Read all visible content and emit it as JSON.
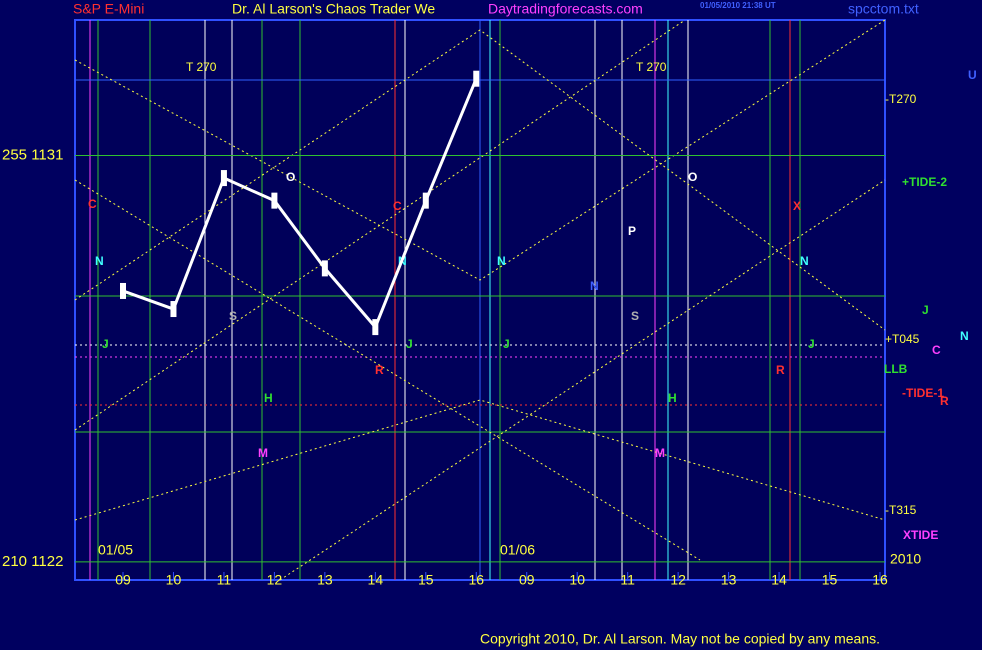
{
  "chart_data": {
    "type": "line",
    "title": "S&P E-Mini",
    "subtitle": "Dr. Al Larson's Chaos Trader We",
    "site": "Daytradingforecasts.com",
    "file": "spcctom.txt",
    "timestamp": "01/05/2010 21:38 UT",
    "copyright": "Copyright 2010, Dr. Al Larson. May not be copied by any means.",
    "date_labels": [
      "01/05",
      "01/06",
      "2010"
    ],
    "categories": [
      "09",
      "10",
      "11",
      "12",
      "13",
      "14",
      "15",
      "16",
      "09",
      "10",
      "11",
      "12",
      "13",
      "14",
      "15",
      "16"
    ],
    "series": [
      {
        "name": "S&P E-Mini",
        "color": "#ffffff",
        "values": [
          1128.0,
          1127.6,
          1130.5,
          1130.0,
          1128.5,
          1127.2,
          1130.0,
          1132.7,
          null,
          null,
          null,
          null,
          null,
          null,
          null,
          null
        ]
      }
    ],
    "ylim": [
      1121.6,
      1134.0
    ],
    "yticks": [
      {
        "value": 1131,
        "label": "255 1131"
      },
      {
        "value": 1122,
        "label": "210 1122"
      }
    ],
    "annotations": [
      "T 270",
      "T 270",
      "-T270",
      "+TIDE-2",
      "+T045",
      "LLB",
      "-TIDE-1",
      "-T315",
      "XTIDE",
      "U",
      "J",
      "N",
      "C",
      "R",
      "O",
      "O",
      "P",
      "C",
      "C",
      "N",
      "N",
      "N",
      "N",
      "N",
      "S",
      "S",
      "H",
      "H",
      "M",
      "M",
      "J",
      "J",
      "J",
      "J",
      "R",
      "R",
      "X"
    ]
  }
}
